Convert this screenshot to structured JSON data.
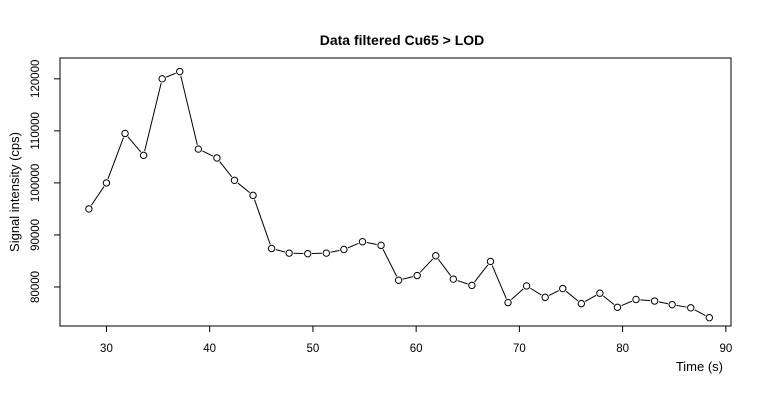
{
  "chart_data": {
    "type": "line",
    "title": "Data filtered Cu65 > LOD",
    "xlabel": "Time (s)",
    "ylabel": "Signal intensity (cps)",
    "xlim": [
      25.5,
      90.5
    ],
    "ylim": [
      72500,
      124000
    ],
    "x_ticks": [
      30,
      40,
      50,
      60,
      70,
      80,
      90
    ],
    "y_ticks": [
      80000,
      90000,
      100000,
      110000,
      120000
    ],
    "grid": false,
    "legend": "none",
    "marker": "open-circle",
    "series": [
      {
        "x": [
          28.3,
          30.0,
          31.8,
          33.6,
          35.4,
          37.1,
          38.9,
          40.7,
          42.4,
          44.2,
          46.0,
          47.7,
          49.5,
          51.3,
          53.0,
          54.8,
          56.6,
          58.3,
          60.1,
          61.9,
          63.6,
          65.4,
          67.2,
          68.9,
          70.7,
          72.5,
          74.2,
          76.0,
          77.8,
          79.5,
          81.3,
          83.1,
          84.8,
          86.6,
          88.4
        ],
        "y": [
          95000,
          100000,
          109500,
          105300,
          120000,
          121400,
          106500,
          104800,
          100500,
          97600,
          87400,
          86500,
          86400,
          86500,
          87200,
          88700,
          88000,
          81300,
          82200,
          86000,
          81500,
          80300,
          84900,
          77000,
          80200,
          78000,
          79700,
          76800,
          78800,
          76100,
          77600,
          77300,
          76600,
          76000,
          74100
        ]
      }
    ]
  }
}
